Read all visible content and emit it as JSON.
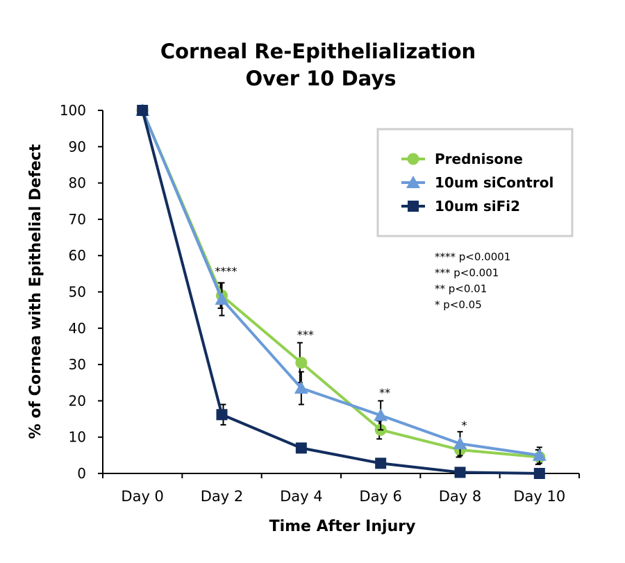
{
  "chart_data": {
    "type": "line",
    "title_lines": [
      "Corneal Re-Epithelialization",
      "Over 10 Days"
    ],
    "xlabel": "Time After Injury",
    "ylabel": "% of Cornea with Epithelial Defect",
    "categories": [
      "Day 0",
      "Day 2",
      "Day 4",
      "Day 6",
      "Day 8",
      "Day 10"
    ],
    "ylim": [
      0,
      100
    ],
    "yticks": [
      0,
      10,
      20,
      30,
      40,
      50,
      60,
      70,
      80,
      90,
      100
    ],
    "grid": false,
    "legend_position": "top-right",
    "series": [
      {
        "name": "Prednisone",
        "color": "#92d050",
        "marker": "circle",
        "values": [
          100,
          49,
          30.5,
          12,
          6.5,
          4.5
        ],
        "errors": [
          0,
          3.5,
          5.5,
          2.5,
          2,
          2
        ]
      },
      {
        "name": "10um siControl",
        "color": "#6a9bd8",
        "marker": "triangle",
        "values": [
          100,
          48,
          23.5,
          16,
          8.2,
          5
        ],
        "errors": [
          0,
          4.5,
          4.5,
          4,
          3.3,
          2.2
        ]
      },
      {
        "name": "10um siFi2",
        "color": "#132d5e",
        "marker": "square",
        "values": [
          100,
          16.2,
          7,
          2.8,
          0.3,
          0
        ],
        "errors": [
          0,
          2.8,
          0.8,
          0.4,
          0.4,
          0.4
        ]
      }
    ],
    "significance": [
      {
        "category_index": 1,
        "label": "****",
        "y": 57
      },
      {
        "category_index": 2,
        "label": "***",
        "y": 39.5
      },
      {
        "category_index": 3,
        "label": "**",
        "y": 23.5
      },
      {
        "category_index": 4,
        "label": "*",
        "y": 14.5
      }
    ],
    "pvalue_notes": [
      "**** p<0.0001",
      "*** p<0.001",
      "** p<0.01",
      "* p<0.05"
    ]
  }
}
